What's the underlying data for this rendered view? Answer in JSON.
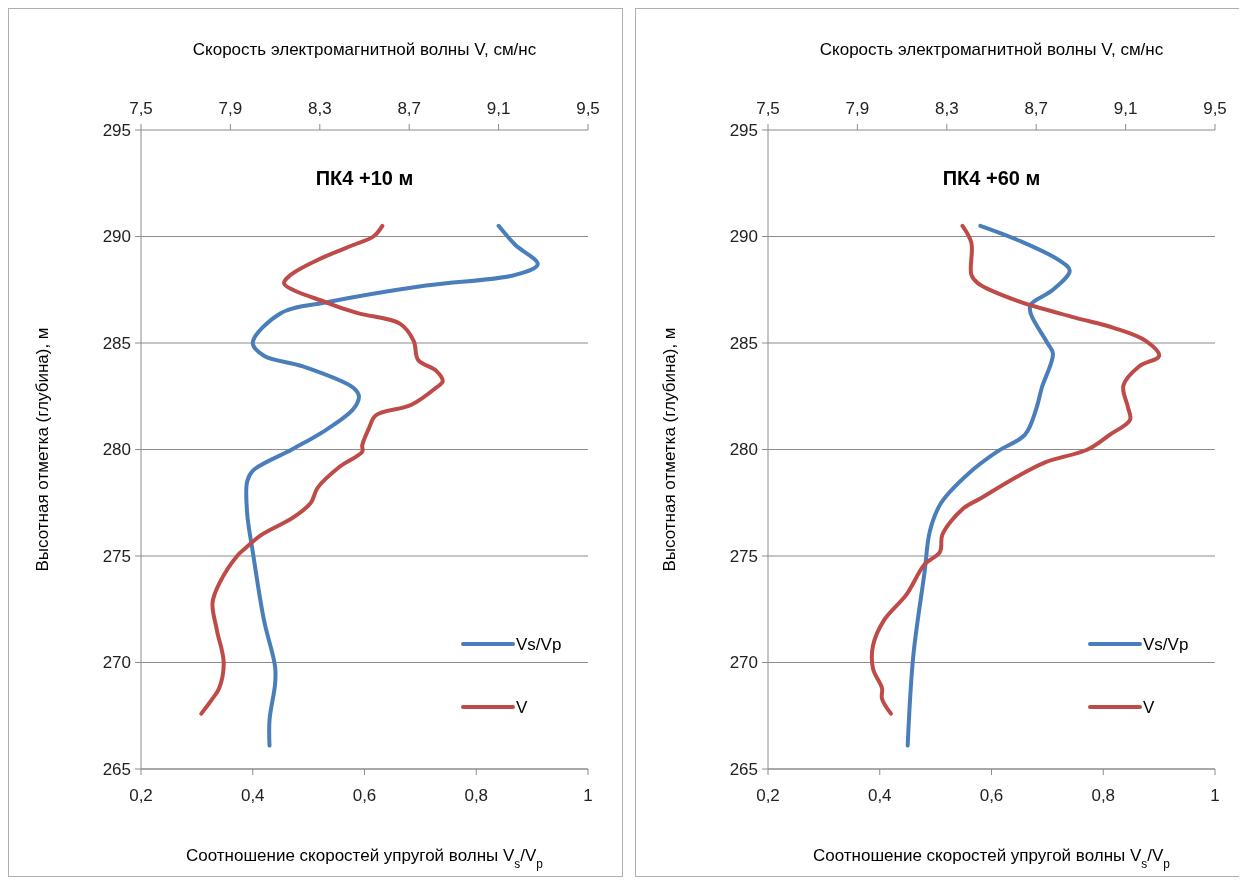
{
  "chart_data": [
    {
      "type": "line",
      "title": "ПК4 +10 м",
      "xlabel": "Соотношение скоростей упругой волны V$_{s}$/V$_{p}$",
      "x2label": "Скорость электромагнитной волны V, см/нс",
      "ylabel": "Высотная отметка (глубина), м",
      "xlim": [
        0.2,
        1
      ],
      "xticks": [
        {
          "value": 0.2,
          "label": "0,2"
        },
        {
          "value": 0.4,
          "label": "0,4"
        },
        {
          "value": 0.6,
          "label": "0,6"
        },
        {
          "value": 0.8,
          "label": "0,8"
        },
        1
      ],
      "x2lim": [
        7.5,
        9.5
      ],
      "x2ticks": [
        {
          "value": 7.5,
          "label": "7,5"
        },
        {
          "value": 7.9,
          "label": "7,9"
        },
        {
          "value": 8.3,
          "label": "8,3"
        },
        {
          "value": 8.7,
          "label": "8,7"
        },
        {
          "value": 9.1,
          "label": "9,1"
        },
        {
          "value": 9.5,
          "label": "9,5"
        }
      ],
      "ylim": [
        265,
        295
      ],
      "yticks": [
        265,
        270,
        275,
        280,
        285,
        290,
        295
      ],
      "grid": "y",
      "legend": "right",
      "series": [
        {
          "name": "Vs/Vp",
          "color": "#4a7ebb",
          "x": [
            0.84,
            0.87,
            0.91,
            0.87,
            0.71,
            0.53,
            0.45,
            0.4,
            0.42,
            0.49,
            0.58,
            0.59,
            0.58,
            0.53,
            0.47,
            0.4,
            0.39,
            0.39,
            0.4,
            0.42,
            0.44,
            0.44,
            0.43,
            0.43
          ],
          "values": [
            290.5,
            289.6,
            288.7,
            288.2,
            287.7,
            286.9,
            286.4,
            285.0,
            284.4,
            283.9,
            282.9,
            282.5,
            281.9,
            280.9,
            280.0,
            279.0,
            278.5,
            277.0,
            275.2,
            272.0,
            269.8,
            269.0,
            267.3,
            266.1
          ]
        },
        {
          "name": "V",
          "color": "#be4b48",
          "axis": "x2",
          "x": [
            8.58,
            8.54,
            8.45,
            8.29,
            8.17,
            8.14,
            8.33,
            8.47,
            8.66,
            8.72,
            8.74,
            8.82,
            8.85,
            8.82,
            8.71,
            8.55,
            8.52,
            8.49,
            8.49,
            8.39,
            8.29,
            8.26,
            8.18,
            8.04,
            7.96,
            7.93,
            7.85,
            7.82,
            7.84,
            7.87,
            7.85,
            7.82,
            7.77
          ],
          "values": [
            290.5,
            290.0,
            289.6,
            288.9,
            288.2,
            287.8,
            286.9,
            286.4,
            285.9,
            285.1,
            284.2,
            283.7,
            283.2,
            282.9,
            282.1,
            281.6,
            281.0,
            280.2,
            279.9,
            279.2,
            278.2,
            277.5,
            276.8,
            276.0,
            275.3,
            275.0,
            273.7,
            272.8,
            271.5,
            270.0,
            268.8,
            268.3,
            267.6
          ]
        }
      ]
    },
    {
      "type": "line",
      "title": "ПК4 +60 м",
      "xlabel": "Соотношение скоростей упругой волны V$_{s}$/V$_{p}$",
      "x2label": "Скорость электромагнитной волны V, см/нс",
      "ylabel": "Высотная отметка (глубина), м",
      "xlim": [
        0.2,
        1
      ],
      "xticks": [
        {
          "value": 0.2,
          "label": "0,2"
        },
        {
          "value": 0.4,
          "label": "0,4"
        },
        {
          "value": 0.6,
          "label": "0,6"
        },
        {
          "value": 0.8,
          "label": "0,8"
        },
        1
      ],
      "x2lim": [
        7.5,
        9.5
      ],
      "x2ticks": [
        {
          "value": 7.5,
          "label": "7,5"
        },
        {
          "value": 7.9,
          "label": "7,9"
        },
        {
          "value": 8.3,
          "label": "8,3"
        },
        {
          "value": 8.7,
          "label": "8,7"
        },
        {
          "value": 9.1,
          "label": "9,1"
        },
        {
          "value": 9.5,
          "label": "9,5"
        }
      ],
      "ylim": [
        265,
        295
      ],
      "yticks": [
        265,
        270,
        275,
        280,
        285,
        290,
        295
      ],
      "grid": "y",
      "legend": "right",
      "series": [
        {
          "name": "Vs/Vp",
          "color": "#4a7ebb",
          "x": [
            0.58,
            0.65,
            0.72,
            0.74,
            0.71,
            0.67,
            0.67,
            0.7,
            0.71,
            0.69,
            0.68,
            0.66,
            0.61,
            0.56,
            0.51,
            0.49,
            0.48,
            0.46,
            0.45
          ],
          "values": [
            290.5,
            289.8,
            288.9,
            288.4,
            287.5,
            286.8,
            286.4,
            285.0,
            284.5,
            282.9,
            281.9,
            280.7,
            279.9,
            278.9,
            277.5,
            276.2,
            274.2,
            270.3,
            266.1
          ]
        },
        {
          "name": "V",
          "color": "#be4b48",
          "axis": "x2",
          "x": [
            8.37,
            8.41,
            8.41,
            8.44,
            8.61,
            8.87,
            9.05,
            9.19,
            9.25,
            9.16,
            9.09,
            9.11,
            9.12,
            9.03,
            8.93,
            8.74,
            8.61,
            8.45,
            8.37,
            8.28,
            8.27,
            8.2,
            8.12,
            8.02,
            7.97,
            7.97,
            8.01,
            8.01,
            8.05
          ],
          "values": [
            290.5,
            289.7,
            288.2,
            287.8,
            287.0,
            286.2,
            285.7,
            285.1,
            284.4,
            283.9,
            283.0,
            282.0,
            281.4,
            280.7,
            280.0,
            279.4,
            278.7,
            277.7,
            277.2,
            276.0,
            275.2,
            274.6,
            273.2,
            272.0,
            270.8,
            269.7,
            268.8,
            268.3,
            267.6
          ]
        }
      ]
    }
  ]
}
